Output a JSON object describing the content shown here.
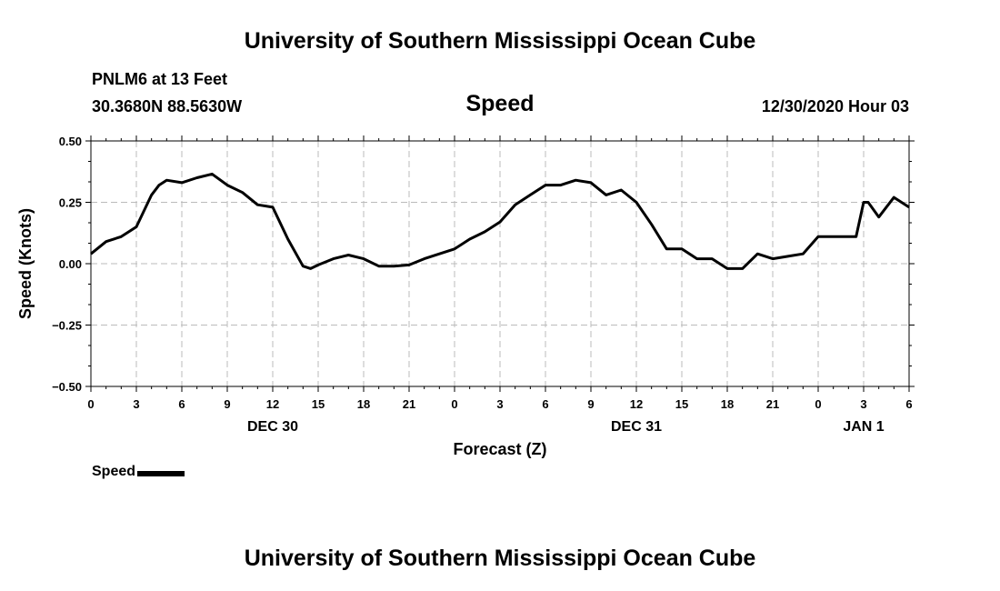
{
  "header": {
    "title": "University of Southern Mississippi Ocean Cube",
    "station": "PNLM6 at 13 Feet",
    "coords": "30.3680N 88.5630W",
    "plot_title": "Speed",
    "run_time": "12/30/2020 Hour 03"
  },
  "footer": {
    "title": "University of Southern Mississippi Ocean Cube"
  },
  "legend": {
    "label": "Speed"
  },
  "chart_data": {
    "type": "line",
    "title": "Speed",
    "xlabel": "Forecast (Z)",
    "ylabel": "Speed (Knots)",
    "ylim": [
      -0.5,
      0.5
    ],
    "xlim": [
      0,
      54
    ],
    "grid": true,
    "y_ticks": [
      "0.50",
      "0.25",
      "0.00",
      "−0.25",
      "−0.50"
    ],
    "x_ticks": [
      {
        "h": 0,
        "label": "0"
      },
      {
        "h": 3,
        "label": "3"
      },
      {
        "h": 6,
        "label": "6"
      },
      {
        "h": 9,
        "label": "9"
      },
      {
        "h": 12,
        "label": "12"
      },
      {
        "h": 15,
        "label": "15"
      },
      {
        "h": 18,
        "label": "18"
      },
      {
        "h": 21,
        "label": "21"
      },
      {
        "h": 24,
        "label": "0"
      },
      {
        "h": 27,
        "label": "3"
      },
      {
        "h": 30,
        "label": "6"
      },
      {
        "h": 33,
        "label": "9"
      },
      {
        "h": 36,
        "label": "12"
      },
      {
        "h": 39,
        "label": "15"
      },
      {
        "h": 42,
        "label": "18"
      },
      {
        "h": 45,
        "label": "21"
      },
      {
        "h": 48,
        "label": "0"
      },
      {
        "h": 51,
        "label": "3"
      },
      {
        "h": 54,
        "label": "6"
      }
    ],
    "date_labels": [
      {
        "h": 12,
        "label": "DEC 30"
      },
      {
        "h": 36,
        "label": "DEC 31"
      },
      {
        "h": 51,
        "label": "JAN 1"
      }
    ],
    "series": [
      {
        "name": "Speed",
        "color": "#000000",
        "x": [
          0,
          1,
          2,
          3,
          4,
          4.5,
          5,
          6,
          7,
          8,
          9,
          10,
          11,
          12,
          13,
          14,
          14.5,
          15,
          16,
          17,
          18,
          19,
          20,
          21,
          22,
          23,
          24,
          25,
          26,
          27,
          28,
          29,
          30,
          31,
          32,
          33,
          34,
          35,
          36,
          37,
          38,
          39,
          40,
          41,
          42,
          42.5,
          43,
          44,
          45,
          46,
          47,
          48,
          49,
          50,
          50.5,
          51,
          51.3,
          52,
          53,
          54
        ],
        "values": [
          0.04,
          0.09,
          0.11,
          0.15,
          0.28,
          0.32,
          0.34,
          0.33,
          0.35,
          0.365,
          0.32,
          0.29,
          0.24,
          0.23,
          0.1,
          -0.01,
          -0.02,
          -0.005,
          0.02,
          0.035,
          0.02,
          -0.01,
          -0.01,
          -0.005,
          0.02,
          0.04,
          0.06,
          0.1,
          0.13,
          0.17,
          0.24,
          0.28,
          0.32,
          0.32,
          0.34,
          0.33,
          0.28,
          0.3,
          0.25,
          0.16,
          0.06,
          0.06,
          0.02,
          0.02,
          -0.02,
          -0.02,
          -0.02,
          0.04,
          0.02,
          0.03,
          0.04,
          0.11,
          0.11,
          0.11,
          0.11,
          0.25,
          0.25,
          0.19,
          0.27,
          0.23
        ]
      }
    ]
  }
}
